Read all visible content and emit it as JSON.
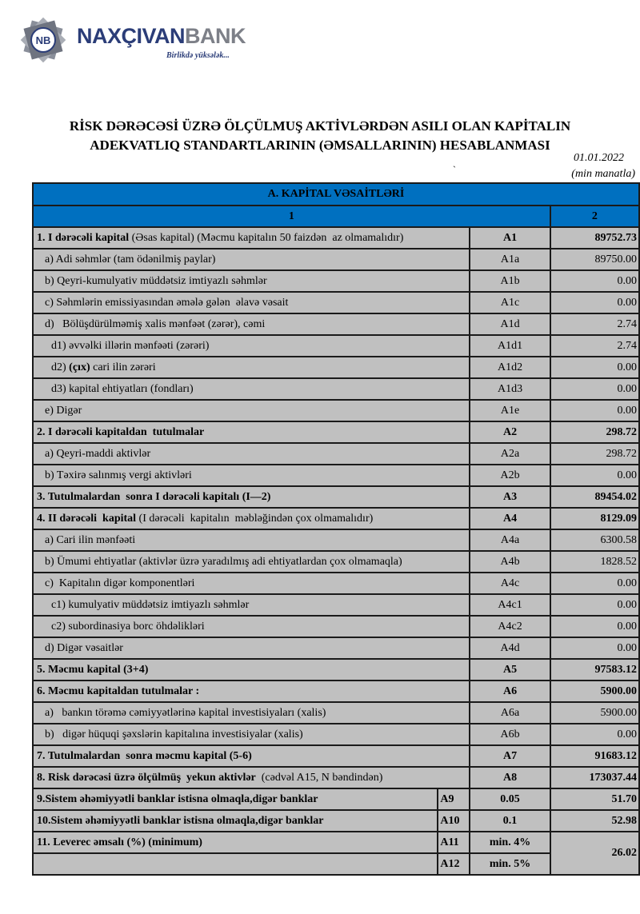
{
  "logo": {
    "name_part1": "NAXÇIVAN",
    "name_part2": "BANK",
    "tagline": "Birlikdə yüksələk...",
    "monogram": "NB"
  },
  "title_line1": "RİSK DƏRƏCƏSİ ÜZRƏ ÖLÇÜLMUŞ AKTİVLƏRDƏN ASILI OLAN KAPİTALIN",
  "title_line2": "ADEKVATLIQ STANDARTLARININ (ƏMSALLARININ) HESABLANMASI",
  "date": "01.01.2022",
  "stray_mark": "`",
  "unit": "(min manatla)",
  "table": {
    "section": "A. KAPİTAL VƏSAİTLƏRİ",
    "col1": "1",
    "col2": "2",
    "rows": [
      {
        "bold": "1. I dərəcəli kapital",
        "text": " (Əsas kapital) (Məcmu kapitalın 50 faizdən  az olmamalıdır)",
        "code": "A1",
        "value": "89752.73",
        "strong": true,
        "indent": 0
      },
      {
        "bold": "",
        "text": "a) Adi səhmlər (tam ödənilmiş paylar)",
        "code": "A1a",
        "value": "89750.00",
        "strong": false,
        "indent": 1
      },
      {
        "bold": "",
        "text": "b) Qeyri-kumulyativ müddətsiz imtiyazlı səhmlər",
        "code": "A1b",
        "value": "0.00",
        "strong": false,
        "indent": 1
      },
      {
        "bold": "",
        "text": "c) Səhmlərin emissiyasından əmələ gələn  əlavə vəsait",
        "code": "A1c",
        "value": "0.00",
        "strong": false,
        "indent": 1
      },
      {
        "bold": "",
        "text": "d)   Bölüşdürülməmiş xalis mənfəət (zərər), cəmi",
        "code": "A1d",
        "value": "2.74",
        "strong": false,
        "indent": 1
      },
      {
        "bold": "",
        "text": "d1) əvvəlki illərin mənfəəti (zərəri)",
        "code": "A1d1",
        "value": "2.74",
        "strong": false,
        "indent": 2
      },
      {
        "pre": "d2) ",
        "bold": "(çıx)",
        "text": " cari ilin zərəri",
        "code": "A1d2",
        "value": "0.00",
        "strong": false,
        "indent": 2
      },
      {
        "bold": "",
        "text": "d3) kapital ehtiyatları (fondları)",
        "code": "A1d3",
        "value": "0.00",
        "strong": false,
        "indent": 2
      },
      {
        "bold": "",
        "text": "e) Digər",
        "code": "A1e",
        "value": "0.00",
        "strong": false,
        "indent": 1
      },
      {
        "bold": "2. I dərəcəli kapitaldan  tutulmalar",
        "text": "",
        "code": "A2",
        "value": "298.72",
        "strong": true,
        "indent": 0
      },
      {
        "bold": "",
        "text": "a) Qeyri-maddi aktivlər",
        "code": "A2a",
        "value": "298.72",
        "strong": false,
        "indent": 1
      },
      {
        "bold": "",
        "text": "b) Təxirə salınmış vergi aktivləri",
        "code": "A2b",
        "value": "0.00",
        "strong": false,
        "indent": 1
      },
      {
        "bold": "3. Tutulmalardan  sonra I dərəcəli kapitalı (I—2)",
        "text": "",
        "code": "A3",
        "value": "89454.02",
        "strong": true,
        "indent": 0
      },
      {
        "bold": "4. II dərəcəli  kapital",
        "text": " (I dərəcəli  kapitalın  məbləğindən çox olmamalıdır)",
        "code": "A4",
        "value": "8129.09",
        "strong": true,
        "indent": 0
      },
      {
        "bold": "",
        "text": "a) Cari ilin mənfəəti",
        "code": "A4a",
        "value": "6300.58",
        "strong": false,
        "indent": 1
      },
      {
        "bold": "",
        "text": "b) Ümumi ehtiyatlar (aktivlər üzrə yaradılmış adi ehtiyatlardan çox olmamaqla)",
        "code": "A4b",
        "value": "1828.52",
        "strong": false,
        "indent": 1
      },
      {
        "bold": "",
        "text": "c)  Kapitalın digər komponentləri",
        "code": "A4c",
        "value": "0.00",
        "strong": false,
        "indent": 1
      },
      {
        "bold": "",
        "text": "c1) kumulyativ müddətsiz imtiyazlı səhmlər",
        "code": "A4c1",
        "value": "0.00",
        "strong": false,
        "indent": 2
      },
      {
        "bold": "",
        "text": "c2) subordinasiya borc öhdəlikləri",
        "code": "A4c2",
        "value": "0.00",
        "strong": false,
        "indent": 2
      },
      {
        "bold": "",
        "text": "d) Digər vəsaitlər",
        "code": "A4d",
        "value": "0.00",
        "strong": false,
        "indent": 1
      },
      {
        "bold": "5. Məcmu kapital (3+4)",
        "text": "",
        "code": "A5",
        "value": "97583.12",
        "strong": true,
        "indent": 0
      },
      {
        "bold": "6. Məcmu kapitaldan tutulmalar :",
        "text": "",
        "code": "A6",
        "value": "5900.00",
        "strong": true,
        "indent": 0
      },
      {
        "bold": "",
        "text": "a)   bankın törəmə cəmiyyətlərinə kapital investisiyaları (xalis)",
        "code": "A6a",
        "value": "5900.00",
        "strong": false,
        "indent": 1
      },
      {
        "bold": "",
        "text": "b)   digər hüquqi şəxslərin kapitalına investisiyalar (xalis)",
        "code": "A6b",
        "value": "0.00",
        "strong": false,
        "indent": 1
      },
      {
        "bold": "7. Tutulmalardan  sonra məcmu kapital (5-6)",
        "text": "",
        "code": "A7",
        "value": "91683.12",
        "strong": true,
        "indent": 0
      },
      {
        "bold": "8. Risk dərəcəsi üzrə ölçülmüş  yekun aktivlər",
        "text": "  (cədvəl A15, N bəndindən)",
        "code": "A8",
        "value": "173037.44",
        "strong": true,
        "indent": 0
      }
    ],
    "ratios": [
      {
        "label": "9.Sistem əhəmiyyətli banklar istisna olmaqla,digər banklar",
        "code": "A9",
        "norm": "0.05",
        "value": "51.70"
      },
      {
        "label": "10.Sistem əhəmiyyətli banklar istisna olmaqla,digər banklar",
        "code": "A10",
        "norm": "0.1",
        "value": "52.98"
      },
      {
        "label": "11. Leverec əmsalı (%) (minimum)",
        "code": "A11",
        "norm": "min. 4%",
        "value": "26.02"
      },
      {
        "label": "",
        "code": "A12",
        "norm": "min. 5%"
      }
    ]
  }
}
